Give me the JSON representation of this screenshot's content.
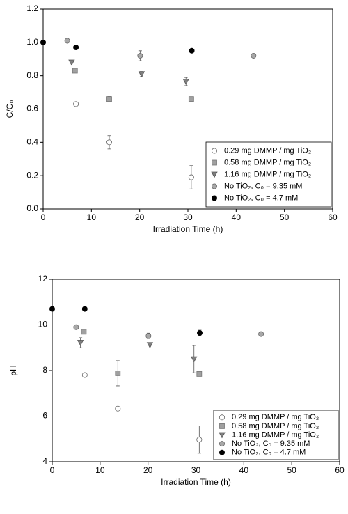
{
  "chart_data": [
    {
      "type": "scatter",
      "x_label": "Irradiation Time (h)",
      "y_label": "C/C₀",
      "xlim": [
        0,
        60
      ],
      "xticks": [
        0,
        10,
        20,
        30,
        40,
        50,
        60
      ],
      "ylim": [
        0,
        1.2
      ],
      "yticks": [
        {
          "value": 0,
          "label": "0.0"
        },
        0.2,
        0.4,
        0.6,
        0.8,
        {
          "value": 1,
          "label": "1.0"
        },
        1.2
      ],
      "legend": "lower right",
      "series": [
        {
          "name": "0.29 mg DMMP / mg TiO₂",
          "marker": "circle",
          "color": "#ffffff",
          "x": [
            6.8,
            13.7,
            30.7
          ],
          "values": [
            0.63,
            0.4,
            0.19
          ],
          "errors": [
            null,
            0.04,
            0.07
          ]
        },
        {
          "name": "0.58 mg DMMP / mg TiO₂",
          "marker": "square",
          "color": "#a0a0a0",
          "x": [
            6.6,
            13.7,
            30.7
          ],
          "values": [
            0.83,
            0.66,
            0.66
          ],
          "errors": [
            null,
            0.015,
            null
          ]
        },
        {
          "name": "1.16 mg DMMP / mg TiO₂",
          "marker": "triangle-down",
          "color": "#7f7f7f",
          "x": [
            5.9,
            20.4,
            29.6
          ],
          "values": [
            0.88,
            0.81,
            0.765
          ],
          "errors": [
            null,
            0.015,
            0.025
          ]
        },
        {
          "name": "No TiO₂, C₀ = 9.35 mM",
          "marker": "circle",
          "color": "#a8a8a8",
          "x": [
            5.0,
            20.1,
            43.6
          ],
          "values": [
            1.01,
            0.92,
            0.92
          ],
          "errors": [
            null,
            0.03,
            null
          ]
        },
        {
          "name": "No TiO₂, C₀ = 4.7 mM",
          "marker": "circle",
          "color": "#000000",
          "x": [
            0,
            6.8,
            30.8
          ],
          "values": [
            1.0,
            0.97,
            0.95
          ],
          "errors": [
            null,
            null,
            null
          ]
        }
      ]
    },
    {
      "type": "scatter",
      "x_label": "Irradiation Time (h)",
      "y_label": "pH",
      "xlim": [
        0,
        60
      ],
      "xticks": [
        0,
        10,
        20,
        30,
        40,
        50,
        60
      ],
      "ylim": [
        4,
        12
      ],
      "yticks": [
        4,
        6,
        8,
        10,
        12
      ],
      "legend": "lower right",
      "series": [
        {
          "name": "0.29 mg DMMP / mg TiO₂",
          "marker": "circle",
          "color": "#ffffff",
          "x": [
            6.8,
            13.7,
            30.7
          ],
          "values": [
            7.8,
            6.33,
            4.97
          ],
          "errors": [
            null,
            null,
            0.6
          ]
        },
        {
          "name": "0.58 mg DMMP / mg TiO₂",
          "marker": "square",
          "color": "#a0a0a0",
          "x": [
            6.6,
            13.7,
            30.7
          ],
          "values": [
            9.7,
            7.88,
            7.85
          ],
          "errors": [
            null,
            0.55,
            null
          ]
        },
        {
          "name": "1.16 mg DMMP / mg TiO₂",
          "marker": "triangle-down",
          "color": "#7f7f7f",
          "x": [
            5.9,
            20.4,
            29.6
          ],
          "values": [
            9.22,
            9.12,
            8.5
          ],
          "errors": [
            0.22,
            null,
            0.6
          ]
        },
        {
          "name": "No TiO₂, C₀ = 9.35 mM",
          "marker": "circle",
          "color": "#a8a8a8",
          "x": [
            5.0,
            20.1,
            43.6
          ],
          "values": [
            9.9,
            9.52,
            9.6
          ],
          "errors": [
            null,
            0.12,
            null
          ]
        },
        {
          "name": "No TiO₂, C₀ = 4.7 mM",
          "marker": "circle",
          "color": "#000000",
          "x": [
            0,
            6.8,
            30.8
          ],
          "values": [
            10.7,
            10.7,
            9.65
          ],
          "errors": [
            null,
            null,
            0.12
          ]
        }
      ]
    }
  ]
}
